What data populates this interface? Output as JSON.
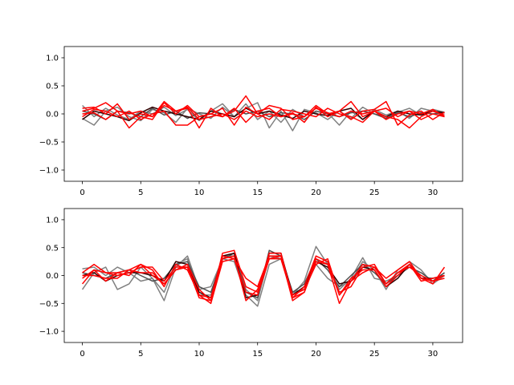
{
  "chart_data": [
    {
      "type": "line",
      "title": "",
      "xlabel": "",
      "ylabel": "",
      "xlim": [
        -1.55,
        32.55
      ],
      "ylim": [
        -1.2,
        1.2
      ],
      "xticks": [
        0,
        5,
        10,
        15,
        20,
        25,
        30
      ],
      "yticks": [
        -1.0,
        -0.5,
        0.0,
        0.5,
        1.0
      ],
      "x": [
        0,
        1,
        2,
        3,
        4,
        5,
        6,
        7,
        8,
        9,
        10,
        11,
        12,
        13,
        14,
        15,
        16,
        17,
        18,
        19,
        20,
        21,
        22,
        23,
        24,
        25,
        26,
        27,
        28,
        29,
        30,
        31
      ],
      "series": [
        {
          "color": "#808080",
          "values": [
            0.15,
            -0.05,
            0.1,
            -0.02,
            -0.1,
            0.05,
            0.0,
            0.12,
            -0.03,
            0.08,
            -0.12,
            0.05,
            0.18,
            -0.05,
            0.1,
            0.2,
            -0.25,
            0.05,
            -0.3,
            0.08,
            0.02,
            -0.1,
            0.05,
            -0.08,
            0.12,
            0.0,
            -0.05,
            0.03,
            0.1,
            -0.02,
            0.08,
            0.03
          ]
        },
        {
          "color": "#808080",
          "values": [
            -0.08,
            -0.2,
            0.05,
            0.12,
            -0.05,
            -0.12,
            0.08,
            0.02,
            -0.15,
            0.1,
            0.0,
            -0.08,
            0.12,
            -0.05,
            0.18,
            -0.1,
            0.05,
            -0.15,
            0.08,
            -0.05,
            0.1,
            0.02,
            -0.2,
            0.05,
            -0.1,
            0.08,
            -0.02,
            0.05,
            -0.08,
            0.1,
            0.05,
            -0.05
          ]
        },
        {
          "color": "#505050",
          "values": [
            0.05,
            0.0,
            -0.1,
            0.05,
            0.02,
            -0.05,
            0.1,
            -0.02,
            0.05,
            -0.08,
            0.02,
            0.0,
            -0.05,
            0.08,
            0.0,
            0.05,
            -0.05,
            0.02,
            0.0,
            -0.1,
            0.05,
            0.0,
            -0.05,
            0.02,
            0.05,
            0.0,
            -0.08,
            0.02,
            -0.05,
            0.02,
            0.0,
            0.02
          ]
        },
        {
          "color": "#300000",
          "values": [
            -0.1,
            0.05,
            0.0,
            -0.05,
            -0.12,
            0.02,
            0.12,
            0.05,
            0.0,
            -0.05,
            -0.1,
            0.05,
            0.0,
            -0.05,
            0.1,
            0.0,
            0.05,
            -0.02,
            -0.08,
            0.05,
            0.0,
            -0.03,
            0.05,
            0.1,
            -0.1,
            0.05,
            -0.05,
            0.05,
            0.0,
            -0.02,
            0.05,
            0.02
          ]
        },
        {
          "color": "#ff0000",
          "values": [
            0.05,
            0.1,
            0.2,
            0.05,
            -0.25,
            -0.05,
            -0.1,
            0.2,
            0.0,
            0.15,
            -0.05,
            0.0,
            -0.05,
            0.05,
            0.32,
            0.0,
            0.15,
            0.1,
            -0.1,
            -0.05,
            0.15,
            0.0,
            0.05,
            -0.1,
            0.05,
            0.08,
            0.22,
            -0.2,
            -0.02,
            0.05,
            -0.1,
            0.03
          ]
        },
        {
          "color": "#ff0000",
          "values": [
            0.1,
            0.12,
            0.0,
            0.18,
            -0.1,
            0.0,
            -0.05,
            0.22,
            0.05,
            0.1,
            -0.25,
            0.1,
            -0.05,
            0.1,
            -0.15,
            0.05,
            0.1,
            -0.05,
            0.02,
            -0.15,
            0.12,
            -0.05,
            0.05,
            0.22,
            -0.05,
            0.05,
            0.1,
            -0.05,
            0.05,
            0.0,
            0.08,
            -0.05
          ]
        },
        {
          "color": "#ff0000",
          "values": [
            -0.05,
            0.08,
            0.05,
            -0.05,
            0.05,
            -0.1,
            0.0,
            0.05,
            -0.2,
            -0.2,
            -0.05,
            0.0,
            0.1,
            -0.2,
            0.12,
            0.0,
            -0.1,
            0.08,
            0.05,
            0.0,
            -0.05,
            0.1,
            0.0,
            -0.05,
            -0.15,
            0.05,
            -0.05,
            -0.1,
            -0.25,
            -0.05,
            0.05,
            -0.02
          ]
        },
        {
          "color": "#ff0000",
          "values": [
            0.0,
            0.02,
            -0.1,
            0.05,
            0.0,
            0.05,
            -0.05,
            0.15,
            0.05,
            0.12,
            -0.1,
            -0.05,
            0.0,
            -0.1,
            0.05,
            -0.05,
            0.0,
            -0.05,
            0.0,
            -0.05,
            0.1,
            0.02,
            -0.05,
            0.05,
            0.0,
            0.05,
            -0.1,
            0.0,
            0.05,
            -0.1,
            0.0,
            -0.05
          ]
        }
      ]
    },
    {
      "type": "line",
      "title": "",
      "xlabel": "",
      "ylabel": "",
      "xlim": [
        -1.55,
        32.55
      ],
      "ylim": [
        -1.2,
        1.2
      ],
      "xticks": [
        0,
        5,
        10,
        15,
        20,
        25,
        30
      ],
      "yticks": [
        -1.0,
        -0.5,
        0.0,
        0.5,
        1.0
      ],
      "x": [
        0,
        1,
        2,
        3,
        4,
        5,
        6,
        7,
        8,
        9,
        10,
        11,
        12,
        13,
        14,
        15,
        16,
        17,
        18,
        19,
        20,
        21,
        22,
        23,
        24,
        25,
        26,
        27,
        28,
        29,
        30,
        31
      ],
      "series": [
        {
          "color": "#808080",
          "values": [
            0.12,
            0.15,
            0.0,
            0.15,
            0.05,
            -0.1,
            -0.05,
            -0.45,
            0.15,
            0.35,
            -0.25,
            -0.2,
            0.3,
            0.25,
            -0.35,
            -0.55,
            0.2,
            0.3,
            -0.35,
            -0.1,
            0.52,
            0.2,
            -0.25,
            -0.05,
            0.32,
            -0.05,
            -0.1,
            0.0,
            0.2,
            0.0,
            -0.1,
            0.05
          ]
        },
        {
          "color": "#808080",
          "values": [
            -0.25,
            0.05,
            0.15,
            -0.25,
            -0.15,
            0.15,
            -0.05,
            -0.3,
            0.2,
            0.3,
            -0.35,
            -0.35,
            0.35,
            0.35,
            -0.25,
            -0.45,
            0.35,
            0.3,
            -0.3,
            -0.25,
            0.2,
            -0.05,
            -0.2,
            -0.1,
            0.25,
            0.1,
            -0.25,
            0.1,
            0.25,
            0.1,
            -0.15,
            0.0
          ]
        },
        {
          "color": "#505050",
          "values": [
            0.05,
            0.0,
            -0.05,
            0.05,
            0.1,
            0.0,
            -0.1,
            -0.05,
            0.2,
            0.25,
            -0.2,
            -0.3,
            0.3,
            0.4,
            -0.3,
            -0.4,
            0.45,
            0.35,
            -0.3,
            -0.15,
            0.3,
            0.1,
            -0.2,
            0.0,
            0.2,
            0.05,
            -0.15,
            0.0,
            0.15,
            0.05,
            -0.1,
            0.05
          ]
        },
        {
          "color": "#300000",
          "values": [
            0.0,
            0.05,
            -0.1,
            0.0,
            0.05,
            0.05,
            0.0,
            -0.1,
            0.25,
            0.2,
            -0.3,
            -0.4,
            0.35,
            0.4,
            -0.4,
            -0.35,
            0.4,
            0.4,
            -0.35,
            -0.2,
            0.25,
            0.15,
            -0.15,
            -0.1,
            0.15,
            0.1,
            -0.2,
            -0.05,
            0.2,
            -0.05,
            -0.05,
            0.0
          ]
        },
        {
          "color": "#ff0000",
          "values": [
            -0.15,
            0.1,
            0.05,
            0.0,
            0.05,
            0.15,
            0.15,
            -0.1,
            0.15,
            0.15,
            -0.35,
            -0.5,
            0.25,
            0.3,
            -0.05,
            -0.2,
            0.35,
            0.35,
            -0.45,
            -0.3,
            0.3,
            0.2,
            -0.5,
            -0.1,
            0.05,
            0.15,
            -0.05,
            0.1,
            0.25,
            -0.05,
            -0.15,
            0.15
          ]
        },
        {
          "color": "#ff0000",
          "values": [
            0.05,
            0.2,
            0.05,
            0.05,
            0.1,
            0.2,
            0.0,
            -0.15,
            0.1,
            0.2,
            -0.25,
            -0.45,
            0.4,
            0.45,
            -0.2,
            -0.3,
            0.4,
            0.4,
            -0.4,
            -0.2,
            0.35,
            0.25,
            -0.35,
            -0.1,
            0.2,
            0.15,
            -0.15,
            0.05,
            0.2,
            -0.1,
            -0.05,
            0.0
          ]
        },
        {
          "color": "#ff0000",
          "values": [
            -0.05,
            0.1,
            -0.1,
            0.05,
            0.0,
            0.2,
            0.1,
            -0.2,
            0.2,
            0.1,
            -0.35,
            -0.4,
            0.35,
            0.3,
            -0.3,
            -0.35,
            0.3,
            0.3,
            -0.4,
            -0.3,
            0.25,
            0.2,
            -0.3,
            -0.2,
            0.15,
            0.2,
            -0.15,
            0.05,
            0.15,
            0.0,
            -0.1,
            0.0
          ]
        },
        {
          "color": "#ff0000",
          "values": [
            0.0,
            0.0,
            -0.05,
            -0.05,
            0.1,
            0.05,
            0.05,
            -0.15,
            0.1,
            0.15,
            -0.4,
            -0.45,
            0.3,
            0.35,
            -0.45,
            -0.25,
            0.3,
            0.35,
            -0.35,
            -0.25,
            0.2,
            0.3,
            -0.35,
            -0.05,
            0.1,
            0.1,
            -0.2,
            0.0,
            0.2,
            -0.05,
            -0.1,
            -0.05
          ]
        }
      ]
    }
  ]
}
